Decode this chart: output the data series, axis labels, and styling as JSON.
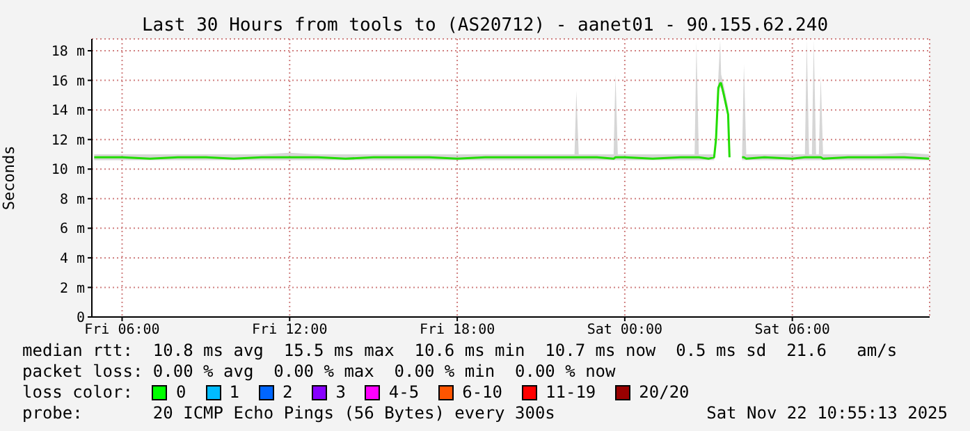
{
  "chart_data": {
    "type": "line",
    "title": "Last 30 Hours from tools to (AS20712) - aanet01 - 90.155.62.240",
    "ylabel": "Seconds",
    "x": [
      "2025-11-21T05:00",
      "2025-11-21T06:00",
      "2025-11-21T07:00",
      "2025-11-21T08:00",
      "2025-11-21T09:00",
      "2025-11-21T10:00",
      "2025-11-21T11:00",
      "2025-11-21T12:00",
      "2025-11-21T13:00",
      "2025-11-21T14:00",
      "2025-11-21T15:00",
      "2025-11-21T16:00",
      "2025-11-21T17:00",
      "2025-11-21T18:00",
      "2025-11-21T19:00",
      "2025-11-21T20:00",
      "2025-11-21T21:00",
      "2025-11-21T22:00",
      "2025-11-21T22:12",
      "2025-11-21T22:16",
      "2025-11-21T22:21",
      "2025-11-21T23:00",
      "2025-11-21T23:36",
      "2025-11-21T23:40",
      "2025-11-21T23:45",
      "2025-11-22T00:00",
      "2025-11-22T01:00",
      "2025-11-22T02:00",
      "2025-11-22T02:30",
      "2025-11-22T02:34",
      "2025-11-22T02:39",
      "2025-11-22T03:00",
      "2025-11-22T03:12",
      "2025-11-22T03:16",
      "2025-11-22T03:21",
      "2025-11-22T03:25",
      "2025-11-22T03:27",
      "2025-11-22T03:33",
      "2025-11-22T03:42",
      "2025-11-22T03:45",
      "2025-11-22T03:57",
      "2025-11-22T04:12",
      "2025-11-22T04:16",
      "2025-11-22T04:21",
      "2025-11-22T05:00",
      "2025-11-22T06:00",
      "2025-11-22T06:27",
      "2025-11-22T06:31",
      "2025-11-22T06:36",
      "2025-11-22T06:42",
      "2025-11-22T06:46",
      "2025-11-22T06:51",
      "2025-11-22T06:57",
      "2025-11-22T07:01",
      "2025-11-22T07:06",
      "2025-11-22T08:00",
      "2025-11-22T09:00",
      "2025-11-22T10:00",
      "2025-11-22T10:54"
    ],
    "series": [
      {
        "color": "#22dd00",
        "values": [
          10.8,
          10.8,
          10.7,
          10.8,
          10.8,
          10.7,
          10.8,
          10.8,
          10.8,
          10.7,
          10.8,
          10.8,
          10.8,
          10.7,
          10.8,
          10.8,
          10.8,
          10.8,
          10.8,
          10.8,
          10.8,
          10.8,
          10.7,
          10.8,
          10.8,
          10.8,
          10.7,
          10.8,
          10.8,
          10.8,
          10.8,
          10.7,
          10.8,
          12.0,
          15.5,
          15.8,
          15.8,
          15.0,
          13.7,
          10.8,
          null,
          10.8,
          10.8,
          10.7,
          10.8,
          10.7,
          10.8,
          10.8,
          10.8,
          10.8,
          10.8,
          10.8,
          10.8,
          10.8,
          10.7,
          10.8,
          10.8,
          10.8,
          10.7
        ],
        "lower": [
          10.6,
          10.6,
          10.6,
          10.6,
          10.6,
          10.6,
          10.6,
          10.6,
          10.6,
          10.6,
          10.6,
          10.6,
          10.6,
          10.6,
          10.6,
          10.6,
          10.6,
          10.6,
          10.6,
          10.6,
          10.6,
          10.6,
          10.6,
          10.6,
          10.6,
          10.6,
          10.6,
          10.6,
          10.6,
          10.6,
          10.6,
          10.6,
          10.6,
          11.8,
          15.2,
          15.5,
          15.5,
          14.7,
          13.4,
          10.6,
          null,
          10.6,
          10.6,
          10.6,
          10.6,
          10.6,
          10.6,
          10.6,
          10.6,
          10.6,
          10.6,
          10.6,
          10.6,
          10.6,
          10.6,
          10.6,
          10.6,
          10.6,
          10.6
        ],
        "upper": [
          11.0,
          11.0,
          11.0,
          11.0,
          11.0,
          11.0,
          11.0,
          11.1,
          11.0,
          11.0,
          11.0,
          11.0,
          11.0,
          11.0,
          11.0,
          11.0,
          11.0,
          11.0,
          11.0,
          15.3,
          11.0,
          11.0,
          11.0,
          16.4,
          11.0,
          11.0,
          11.0,
          11.0,
          11.0,
          18.6,
          11.0,
          11.0,
          11.0,
          12.6,
          16.2,
          18.7,
          16.4,
          15.6,
          14.2,
          11.0,
          null,
          11.0,
          17.1,
          11.0,
          11.0,
          11.0,
          11.0,
          18.7,
          11.0,
          11.0,
          18.7,
          11.0,
          11.0,
          16.3,
          11.0,
          11.0,
          11.0,
          11.1,
          11.0
        ]
      }
    ],
    "xlim": [
      "2025-11-21T04:55",
      "2025-11-22T10:55"
    ],
    "xticks": [
      {
        "value": "2025-11-21T06:00",
        "label": "Fri 06:00"
      },
      {
        "value": "2025-11-21T12:00",
        "label": "Fri 12:00"
      },
      {
        "value": "2025-11-21T18:00",
        "label": "Fri 18:00"
      },
      {
        "value": "2025-11-22T00:00",
        "label": "Sat 00:00"
      },
      {
        "value": "2025-11-22T06:00",
        "label": "Sat 06:00"
      }
    ],
    "ylim": [
      0,
      18.8
    ],
    "yticks": [
      {
        "value": 0,
        "label": "0"
      },
      {
        "value": 2,
        "label": "2 m"
      },
      {
        "value": 4,
        "label": "4 m"
      },
      {
        "value": 6,
        "label": "6 m"
      },
      {
        "value": 8,
        "label": "8 m"
      },
      {
        "value": 10,
        "label": "10 m"
      },
      {
        "value": 12,
        "label": "12 m"
      },
      {
        "value": 14,
        "label": "14 m"
      },
      {
        "value": 16,
        "label": "16 m"
      },
      {
        "value": 18,
        "label": "18 m"
      }
    ],
    "grid": true,
    "annotations": [
      "median rtt:  10.8 ms avg  15.5 ms max  10.6 ms min  10.7 ms now  0.5 ms sd  21.6   am/s",
      "packet loss: 0.00 % avg  0.00 % max  0.00 % min  0.00 % now",
      "loss color:",
      "0",
      "1",
      "2",
      "3",
      "4-5",
      "6-10",
      "11-19",
      "20/20",
      "probe:       20 ICMP Echo Pings (56 Bytes) every 300s",
      "Sat Nov 22 10:55:13 2025"
    ]
  }
}
